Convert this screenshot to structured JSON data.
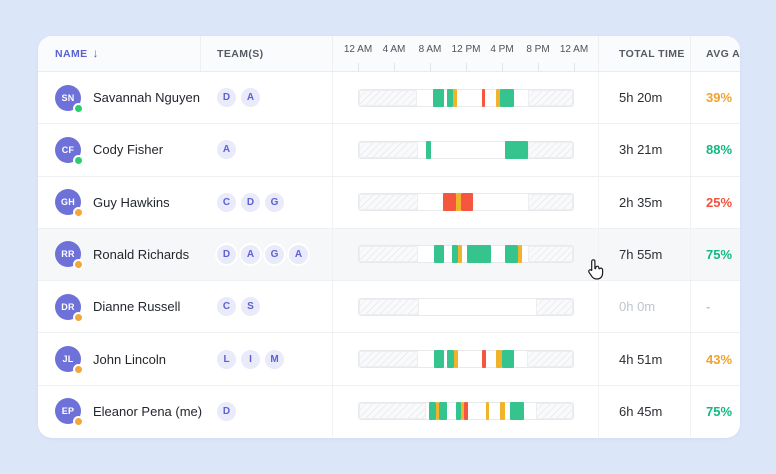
{
  "table": {
    "columns": {
      "name": "NAME",
      "teams": "TEAM(S)",
      "total_time": "TOTAL TIME",
      "avg_activity": "AVG ACTIVITY"
    },
    "sort_icon": "↓",
    "time_axis": [
      "12 AM",
      "4 AM",
      "8 AM",
      "12 PM",
      "4 PM",
      "8 PM",
      "12 AM"
    ]
  },
  "colors": {
    "segment": {
      "green": "#35c48e",
      "yellow": "#f0b42c",
      "red": "#f4563f"
    },
    "percent": {
      "orange": "#f0a22f",
      "green": "#12b981",
      "red": "#f4503c",
      "gray": "#c2c8d0"
    },
    "status": {
      "green": "#2ecc70",
      "orange": "#f2a63c"
    },
    "accent": "#5b61d2",
    "background": "#dbe7f9"
  },
  "rows": [
    {
      "initials": "SN",
      "name": "Savannah Nguyen",
      "status": "green",
      "teams": [
        "D",
        "A"
      ],
      "total_time": "5h 20m",
      "avg_activity": "39%",
      "avg_color": "orange",
      "hovered": false,
      "muted": false,
      "segments": [
        {
          "type": "hatch",
          "start": 0,
          "end": 27.2
        },
        {
          "type": "green",
          "start": 34.4,
          "end": 39.7
        },
        {
          "type": "green",
          "start": 41.0,
          "end": 44.0
        },
        {
          "type": "yellow",
          "start": 44.0,
          "end": 45.6
        },
        {
          "type": "red",
          "start": 57.3,
          "end": 59.1
        },
        {
          "type": "yellow",
          "start": 63.8,
          "end": 66.0
        },
        {
          "type": "green",
          "start": 66.0,
          "end": 72.2
        },
        {
          "type": "hatch",
          "start": 79.1,
          "end": 100
        }
      ]
    },
    {
      "initials": "CF",
      "name": "Cody Fisher",
      "status": "green",
      "teams": [
        "A"
      ],
      "total_time": "3h 21m",
      "avg_activity": "88%",
      "avg_color": "green",
      "hovered": false,
      "muted": false,
      "segments": [
        {
          "type": "hatch",
          "start": 0,
          "end": 27.7
        },
        {
          "type": "green",
          "start": 31.2,
          "end": 33.5
        },
        {
          "type": "green",
          "start": 68.3,
          "end": 79.1
        },
        {
          "type": "hatch",
          "start": 79.1,
          "end": 100
        }
      ]
    },
    {
      "initials": "GH",
      "name": "Guy Hawkins",
      "status": "orange",
      "teams": [
        "C",
        "D",
        "G"
      ],
      "total_time": "2h 35m",
      "avg_activity": "25%",
      "avg_color": "red",
      "hovered": false,
      "muted": false,
      "segments": [
        {
          "type": "hatch",
          "start": 0,
          "end": 27.7
        },
        {
          "type": "red",
          "start": 39.1,
          "end": 45.2
        },
        {
          "type": "yellow",
          "start": 45.2,
          "end": 47.8
        },
        {
          "type": "red",
          "start": 47.8,
          "end": 53.1
        },
        {
          "type": "hatch",
          "start": 79.1,
          "end": 100
        }
      ]
    },
    {
      "initials": "RR",
      "name": "Ronald Richards",
      "status": "orange",
      "teams": [
        "D",
        "A",
        "G",
        "A"
      ],
      "total_time": "7h 55m",
      "avg_activity": "75%",
      "avg_color": "green",
      "hovered": true,
      "muted": false,
      "segments": [
        {
          "type": "hatch",
          "start": 0,
          "end": 27.7
        },
        {
          "type": "green",
          "start": 35.0,
          "end": 39.9
        },
        {
          "type": "green",
          "start": 43.4,
          "end": 46.3
        },
        {
          "type": "yellow",
          "start": 46.3,
          "end": 48.2
        },
        {
          "type": "green",
          "start": 50.5,
          "end": 61.9
        },
        {
          "type": "green",
          "start": 68.3,
          "end": 74.1
        },
        {
          "type": "yellow",
          "start": 74.1,
          "end": 76.4
        },
        {
          "type": "hatch",
          "start": 79.1,
          "end": 100
        }
      ]
    },
    {
      "initials": "DR",
      "name": "Dianne Russell",
      "status": "orange",
      "teams": [
        "C",
        "S"
      ],
      "total_time": "0h 0m",
      "avg_activity": "-",
      "avg_color": "gray",
      "hovered": false,
      "muted": true,
      "segments": [
        {
          "type": "hatch",
          "start": 0,
          "end": 28.0
        },
        {
          "type": "hatch",
          "start": 82.5,
          "end": 100
        }
      ]
    },
    {
      "initials": "JL",
      "name": "John Lincoln",
      "status": "orange",
      "teams": [
        "L",
        "I",
        "M"
      ],
      "total_time": "4h 51m",
      "avg_activity": "43%",
      "avg_color": "orange",
      "hovered": false,
      "muted": false,
      "segments": [
        {
          "type": "hatch",
          "start": 0,
          "end": 27.7
        },
        {
          "type": "green",
          "start": 35.0,
          "end": 39.9
        },
        {
          "type": "green",
          "start": 41.1,
          "end": 44.4
        },
        {
          "type": "yellow",
          "start": 44.4,
          "end": 46.3
        },
        {
          "type": "red",
          "start": 57.4,
          "end": 59.2
        },
        {
          "type": "yellow",
          "start": 63.8,
          "end": 67.0
        },
        {
          "type": "green",
          "start": 67.0,
          "end": 72.6
        },
        {
          "type": "hatch",
          "start": 78.7,
          "end": 100
        }
      ]
    },
    {
      "initials": "EP",
      "name": "Eleanor Pena (me)",
      "status": "orange",
      "teams": [
        "D"
      ],
      "total_time": "6h 45m",
      "avg_activity": "75%",
      "avg_color": "green",
      "hovered": false,
      "muted": false,
      "segments": [
        {
          "type": "hatch",
          "start": 0,
          "end": 31.5
        },
        {
          "type": "green",
          "start": 32.6,
          "end": 36.1
        },
        {
          "type": "yellow",
          "start": 36.1,
          "end": 37.6
        },
        {
          "type": "green",
          "start": 37.6,
          "end": 41.1
        },
        {
          "type": "green",
          "start": 45.2,
          "end": 47.8
        },
        {
          "type": "yellow",
          "start": 47.8,
          "end": 49.0
        },
        {
          "type": "red",
          "start": 49.0,
          "end": 50.8
        },
        {
          "type": "yellow",
          "start": 59.2,
          "end": 60.9
        },
        {
          "type": "yellow",
          "start": 65.8,
          "end": 68.3
        },
        {
          "type": "green",
          "start": 70.6,
          "end": 76.9
        },
        {
          "type": "hatch",
          "start": 82.8,
          "end": 100
        }
      ]
    }
  ]
}
